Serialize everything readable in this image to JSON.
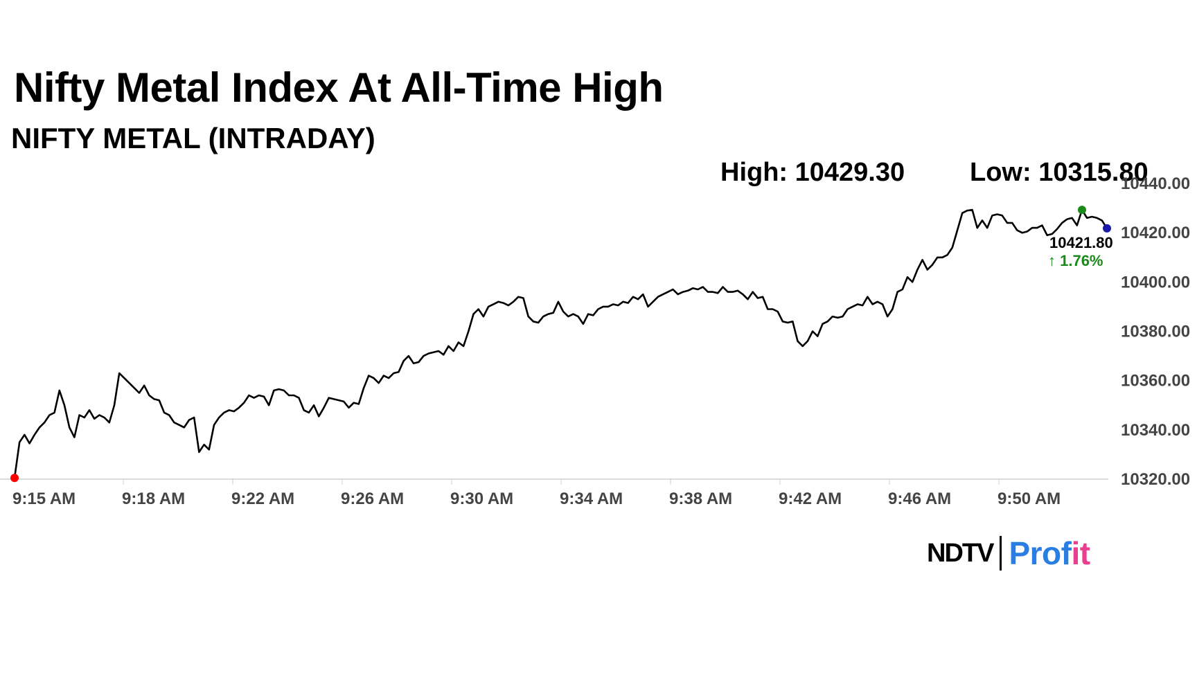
{
  "header": {
    "title": "Nifty Metal Index At All-Time High",
    "subtitle": "NIFTY METAL (INTRADAY)",
    "high_label": "High: 10429.30",
    "low_label": "Low: 10315.80"
  },
  "branding": {
    "ndtv": "NDTV",
    "profit_a": "Prof",
    "profit_b": "it"
  },
  "chart_data": {
    "type": "line",
    "x_tick_labels": [
      "9:15 AM",
      "9:18 AM",
      "9:22 AM",
      "9:26 AM",
      "9:30 AM",
      "9:34 AM",
      "9:38 AM",
      "9:42 AM",
      "9:46 AM",
      "9:50 AM"
    ],
    "y_tick_labels": [
      "10320.00",
      "10340.00",
      "10360.00",
      "10380.00",
      "10400.00",
      "10420.00",
      "10440.00"
    ],
    "ylim": [
      10320,
      10440
    ],
    "grid": false,
    "line_color": "#000000",
    "last_value_label": "10421.80",
    "change_label": "↑ 1.76%",
    "change_color": "#1a8a1a",
    "start_marker_color": "#ff0000",
    "high_marker_color": "#1a8a1a",
    "last_marker_color": "#1a1aa8",
    "series": [
      {
        "y": [
          10320.5,
          10335,
          10338,
          10334.5,
          10338,
          10341,
          10343,
          10346,
          10347,
          10356,
          10350,
          10341,
          10337,
          10346,
          10345,
          10348,
          10344.5,
          10346,
          10345,
          10343,
          10350,
          10363,
          10361,
          10359,
          10357,
          10355,
          10358,
          10354,
          10352.5,
          10352,
          10347,
          10346,
          10343,
          10342,
          10341,
          10344,
          10345,
          10331,
          10334,
          10332,
          10342,
          10345,
          10347,
          10348,
          10347.5,
          10349,
          10351,
          10354,
          10353,
          10354,
          10353.5,
          10350,
          10356,
          10356.5,
          10356,
          10354,
          10354,
          10353,
          10348,
          10347,
          10350,
          10345.5,
          10349,
          10353,
          10352.5,
          10352,
          10351.5,
          10349,
          10351,
          10350.5,
          10357,
          10362,
          10361,
          10359,
          10362,
          10361,
          10363,
          10363.5,
          10368,
          10370,
          10367,
          10367.5,
          10370,
          10371,
          10371.5,
          10372,
          10370.5,
          10374,
          10372,
          10375.5,
          10374,
          10380,
          10387,
          10389,
          10386,
          10390,
          10391,
          10392,
          10391.5,
          10390.5,
          10392,
          10394,
          10393.5,
          10386,
          10384,
          10383.5,
          10386,
          10387,
          10387.5,
          10392,
          10388,
          10386,
          10387,
          10386,
          10383,
          10387,
          10386.5,
          10389,
          10390,
          10390,
          10391,
          10390.5,
          10392,
          10391.5,
          10394,
          10393,
          10395,
          10390,
          10392,
          10394,
          10395,
          10396,
          10397,
          10395,
          10396,
          10396.5,
          10397.5,
          10397,
          10398,
          10396,
          10396,
          10395.5,
          10398,
          10396,
          10396,
          10396.5,
          10395,
          10393,
          10396,
          10393.5,
          10394,
          10389,
          10389,
          10388,
          10384,
          10383.5,
          10384,
          10376,
          10374,
          10376,
          10380,
          10378,
          10383,
          10384,
          10386,
          10385.5,
          10386,
          10389,
          10390,
          10391,
          10390.5,
          10394,
          10391,
          10392,
          10391,
          10386,
          10389,
          10396,
          10397,
          10402,
          10400,
          10405,
          10409,
          10405,
          10407,
          10410,
          10410,
          10411,
          10414,
          10421,
          10428,
          10429,
          10429.3,
          10422,
          10425,
          10422,
          10427,
          10427.5,
          10427,
          10424,
          10424,
          10421,
          10420,
          10420.5,
          10422,
          10422,
          10423,
          10419,
          10419.5,
          10421.5,
          10424,
          10425.5,
          10426,
          10423,
          10429.3,
          10426,
          10426.5,
          10426,
          10425,
          10421.8
        ]
      }
    ]
  }
}
